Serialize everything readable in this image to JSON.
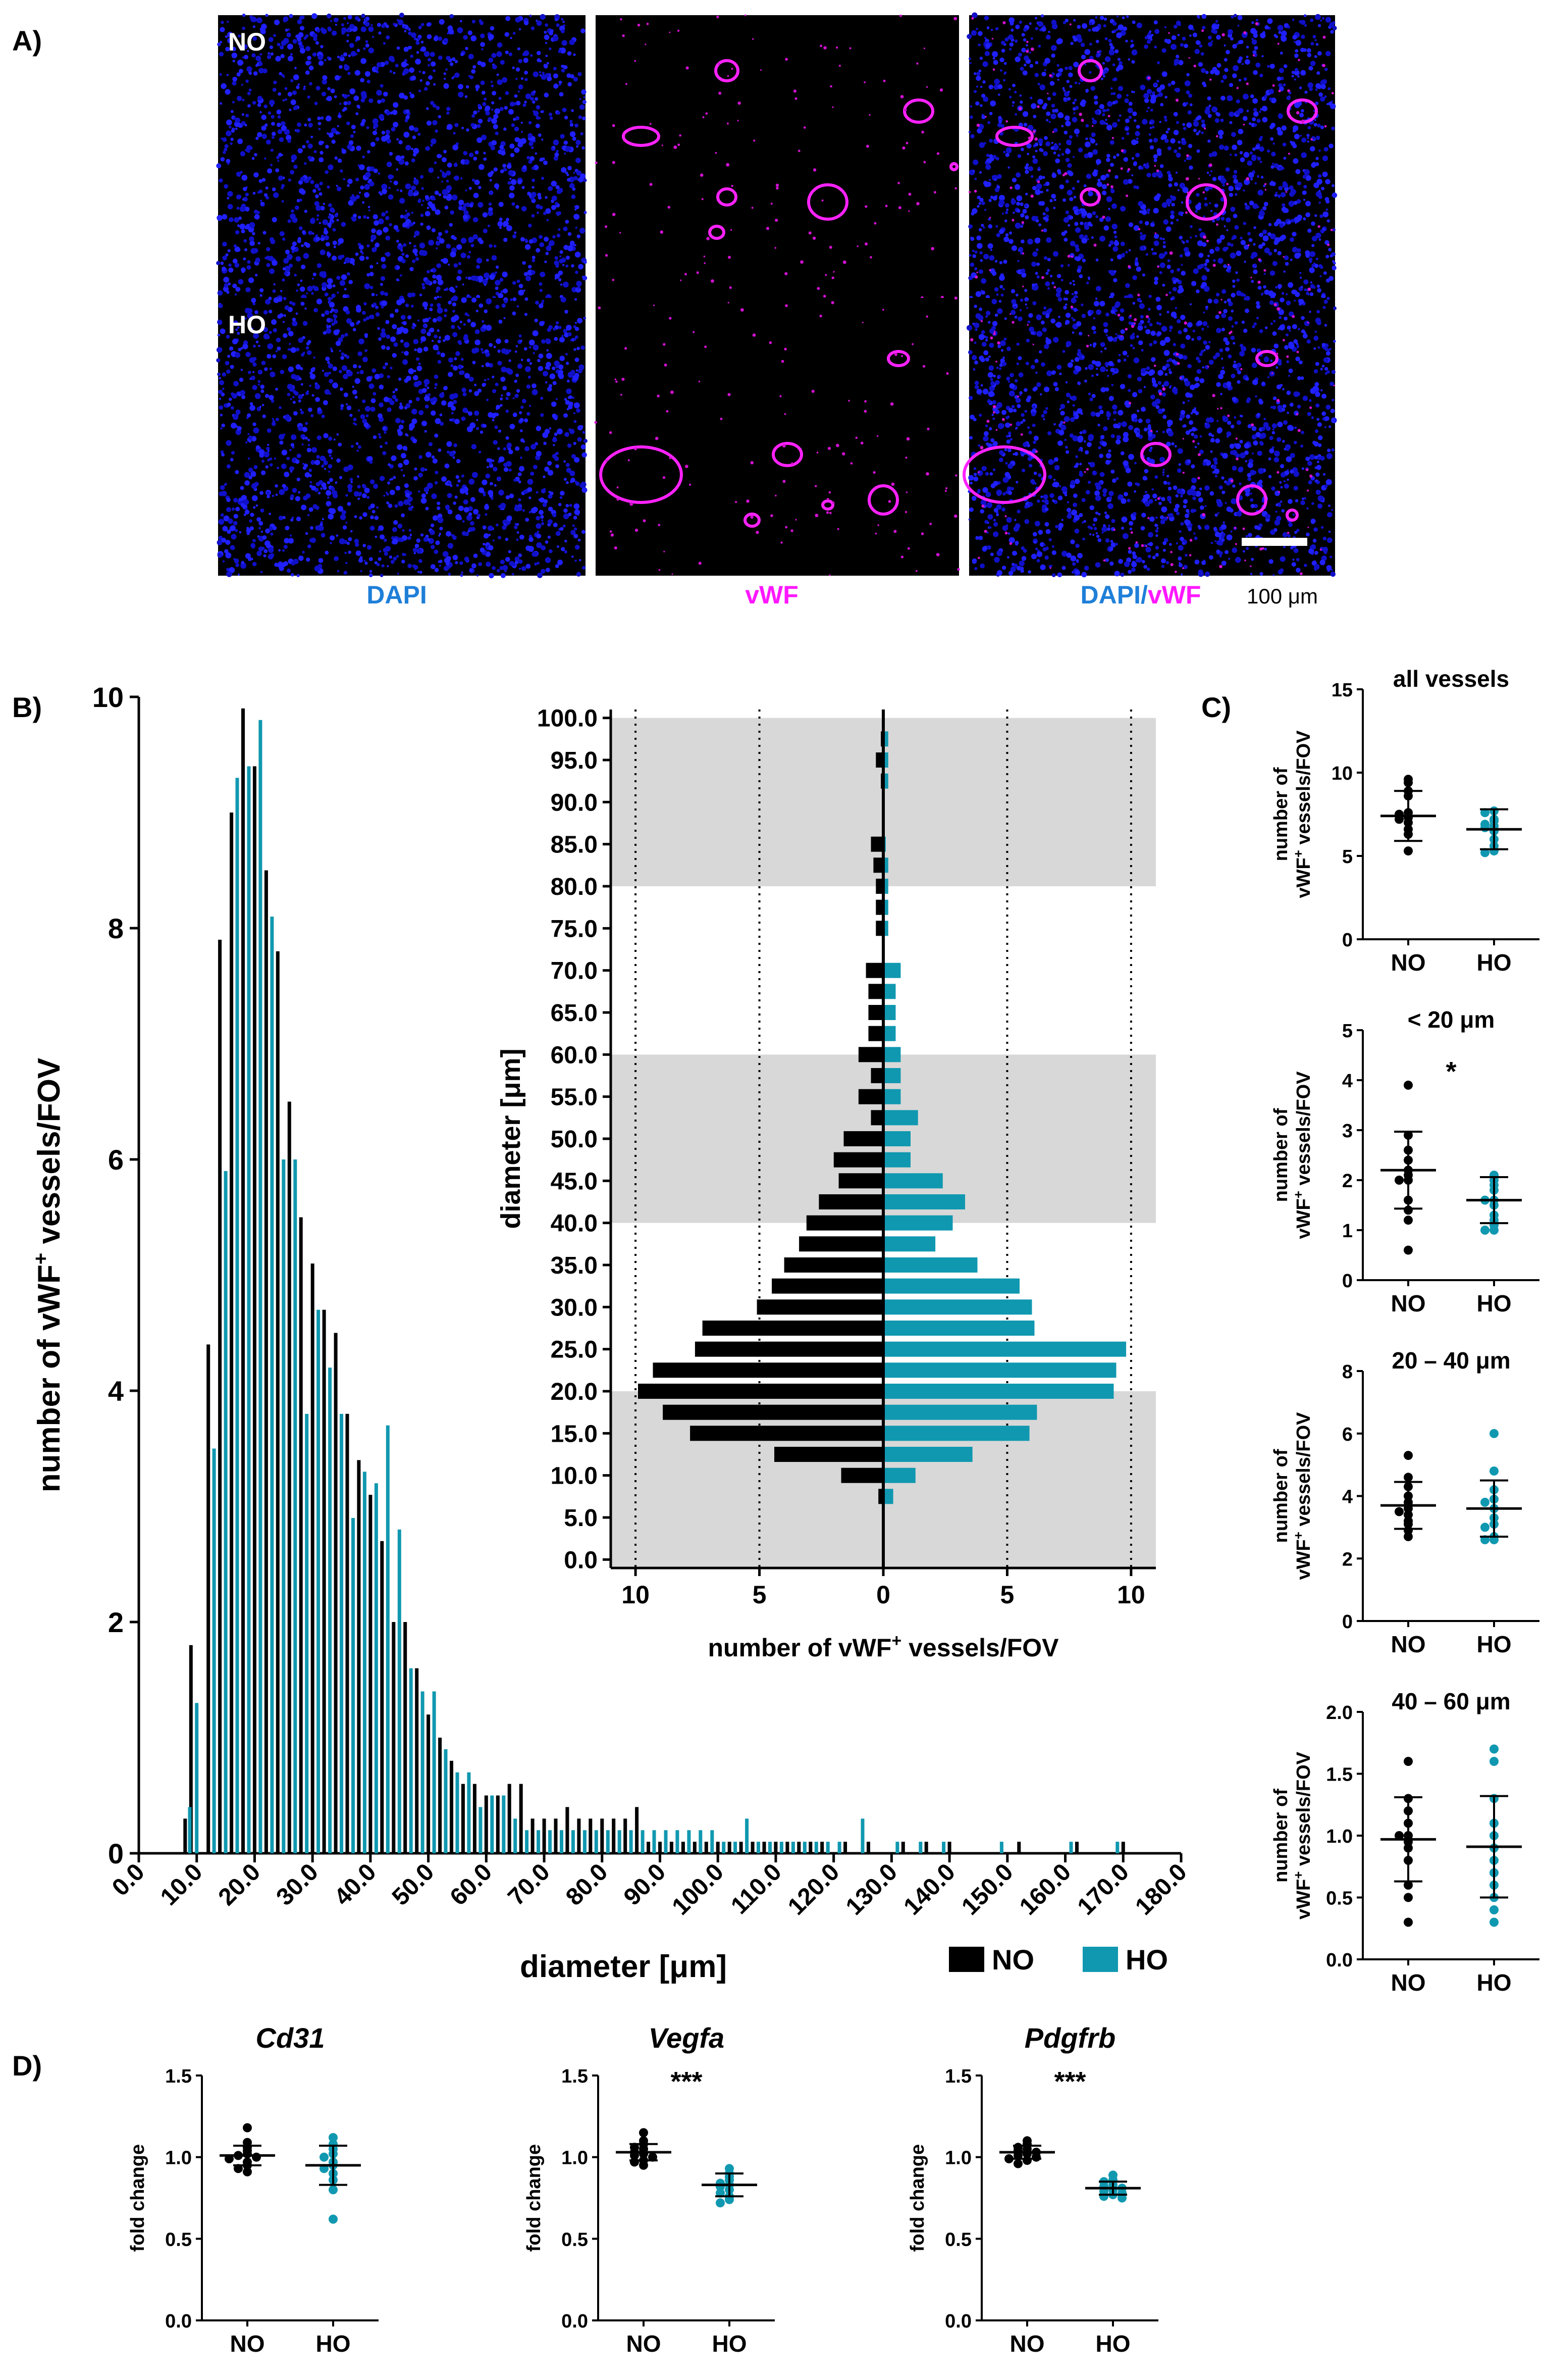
{
  "colors": {
    "no": "#000000",
    "ho": "#1098b0",
    "dapi": "#1f7fd8",
    "vwf": "#ff18ff",
    "gray": "#d8d8d8"
  },
  "panel_labels": {
    "a": "A)",
    "b": "B)",
    "c": "C)",
    "d": "D)"
  },
  "microscopy": {
    "row_labels": [
      "NO",
      "HO"
    ],
    "channel_dapi": "DAPI",
    "channel_vwf": "vWF",
    "merge_sep": "/",
    "scale_bar": "100 μm"
  },
  "chart_data": [
    {
      "id": "histogram",
      "type": "bar",
      "xlabel": "diameter [μm]",
      "ylabel_main": "number of vWF",
      "ylabel_sup": "+",
      "ylabel_tail": " vessels/FOV",
      "ylim": [
        0,
        10
      ],
      "yticks": [
        "0",
        "2",
        "4",
        "6",
        "8",
        "10"
      ],
      "xticks": [
        "0.0",
        "10.0",
        "20.0",
        "30.0",
        "40.0",
        "50.0",
        "60.0",
        "70.0",
        "80.0",
        "90.0",
        "100.0",
        "110.0",
        "120.0",
        "130.0",
        "140.0",
        "150.0",
        "160.0",
        "170.0",
        "180.0"
      ],
      "legend": [
        "NO",
        "HO"
      ],
      "series": [
        {
          "name": "NO",
          "x": [
            8,
            9,
            12,
            14,
            16,
            18,
            20,
            22,
            24,
            26,
            28,
            30,
            32,
            34,
            36,
            38,
            40,
            42,
            44,
            46,
            48,
            50,
            52,
            54,
            56,
            58,
            60,
            62,
            64,
            66,
            68,
            70,
            72,
            74,
            76,
            78,
            80,
            82,
            84,
            86,
            88,
            90,
            92,
            94,
            96,
            98,
            100,
            102,
            104,
            106,
            108,
            110,
            112,
            114,
            116,
            118,
            122,
            126,
            132,
            136,
            140,
            152,
            162,
            170
          ],
          "y": [
            0.3,
            1.8,
            4.4,
            7.9,
            9.0,
            9.9,
            9.4,
            8.5,
            7.8,
            6.5,
            5.5,
            5.1,
            4.7,
            4.5,
            3.8,
            3.4,
            3.1,
            2.7,
            2.0,
            2.0,
            1.6,
            1.2,
            1.0,
            0.8,
            0.6,
            0.6,
            0.5,
            0.5,
            0.6,
            0.6,
            0.3,
            0.3,
            0.3,
            0.4,
            0.3,
            0.3,
            0.3,
            0.3,
            0.3,
            0.4,
            0.1,
            0.1,
            0.1,
            0.1,
            0.1,
            0.1,
            0.1,
            0.1,
            0.1,
            0.1,
            0.1,
            0.1,
            0.1,
            0.1,
            0.1,
            0.1,
            0.1,
            0.1,
            0.1,
            0.1,
            0.1,
            0.1,
            0.1,
            0.1
          ]
        },
        {
          "name": "HO",
          "x": [
            8.8,
            10,
            13,
            15,
            17,
            19,
            21,
            23,
            25,
            27,
            29,
            31,
            33,
            35,
            37,
            39,
            41,
            43,
            45,
            47,
            49,
            51,
            53,
            55,
            57,
            59,
            61,
            63,
            65,
            67,
            69,
            71,
            73,
            75,
            77,
            79,
            81,
            83,
            85,
            87,
            89,
            91,
            93,
            95,
            97,
            99,
            101,
            103,
            105,
            107,
            109,
            111,
            113,
            115,
            117,
            119,
            121,
            125,
            131,
            135,
            139,
            149,
            161,
            169
          ],
          "y": [
            0.4,
            1.3,
            3.5,
            5.9,
            9.3,
            9.4,
            9.8,
            8.1,
            6.0,
            6.0,
            3.8,
            4.7,
            4.2,
            3.8,
            2.9,
            3.3,
            3.2,
            3.7,
            2.8,
            1.6,
            1.4,
            1.4,
            0.9,
            0.7,
            0.7,
            0.4,
            0.5,
            0.5,
            0.3,
            0.2,
            0.2,
            0.2,
            0.2,
            0.2,
            0.2,
            0.2,
            0.2,
            0.2,
            0.2,
            0.2,
            0.2,
            0.2,
            0.2,
            0.2,
            0.2,
            0.2,
            0.1,
            0.1,
            0.3,
            0.1,
            0.1,
            0.1,
            0.1,
            0.1,
            0.1,
            0.1,
            0.1,
            0.3,
            0.1,
            0.1,
            0.1,
            0.1,
            0.1,
            0.1
          ]
        }
      ]
    },
    {
      "id": "butterfly",
      "type": "bar",
      "orientation": "horizontal",
      "ylabel": "diameter [μm]",
      "xlabel_main": "number of vWF",
      "xlabel_sup": "+",
      "xlabel_tail": " vessels/FOV",
      "categories": [
        0,
        2.5,
        5,
        7.5,
        10,
        12.5,
        15,
        17.5,
        20,
        22.5,
        25,
        27.5,
        30,
        32.5,
        35,
        37.5,
        40,
        42.5,
        45,
        47.5,
        50,
        52.5,
        55,
        57.5,
        60,
        62.5,
        65,
        67.5,
        70,
        72.5,
        75,
        77.5,
        80,
        82.5,
        85,
        87.5,
        90,
        92.5,
        95,
        97.5,
        100
      ],
      "ylim": [
        -1,
        101
      ],
      "xlim": [
        -11,
        11
      ],
      "yticks": [
        "0.0",
        "5.0",
        "10.0",
        "15.0",
        "20.0",
        "25.0",
        "30.0",
        "35.0",
        "40.0",
        "45.0",
        "50.0",
        "55.0",
        "60.0",
        "65.0",
        "70.0",
        "75.0",
        "80.0",
        "85.0",
        "90.0",
        "95.0",
        "100.0"
      ],
      "xticks": [
        "10",
        "5",
        "0",
        "5",
        "10"
      ],
      "shaded_ranges": [
        [
          -1,
          20
        ],
        [
          40,
          60
        ],
        [
          80,
          100
        ]
      ],
      "dotted_lines": [
        -10,
        -5,
        5,
        10
      ],
      "series": [
        {
          "name": "NO",
          "values": [
            0,
            0,
            0,
            0.2,
            1.7,
            4.4,
            7.8,
            8.9,
            9.9,
            9.3,
            7.6,
            7.3,
            5.1,
            4.5,
            4.0,
            3.4,
            3.1,
            2.6,
            1.8,
            2.0,
            1.6,
            0.5,
            1.0,
            0.5,
            1.0,
            0.6,
            0.6,
            0.6,
            0.7,
            0,
            0.3,
            0.3,
            0.3,
            0.4,
            0.5,
            0,
            0,
            0.1,
            0.3,
            0.1,
            0
          ]
        },
        {
          "name": "HO",
          "values": [
            0,
            0,
            0,
            0.4,
            1.3,
            3.6,
            5.9,
            6.2,
            9.3,
            9.4,
            9.8,
            6.1,
            6.0,
            5.5,
            3.8,
            2.1,
            2.8,
            3.3,
            2.4,
            1.1,
            1.1,
            1.4,
            0.7,
            0.7,
            0.7,
            0.5,
            0.5,
            0.5,
            0.7,
            0,
            0.2,
            0.2,
            0.2,
            0.2,
            0.1,
            0,
            0,
            0.2,
            0.2,
            0.2,
            0
          ]
        }
      ]
    },
    {
      "id": "c_all",
      "type": "scatter",
      "title": "all vessels",
      "ylabel_l1": "number of",
      "ylabel_l2_main": "vWF",
      "ylabel_l2_sup": "+",
      "ylabel_l2_tail": " vessels/FOV",
      "categories": [
        "NO",
        "HO"
      ],
      "ylim": [
        0,
        15
      ],
      "yticks": [
        "0",
        "5",
        "10",
        "15"
      ],
      "sig": "",
      "groups": [
        {
          "name": "NO",
          "mean": 7.4,
          "sd": 1.5,
          "points": [
            9.6,
            9.4,
            8.9,
            8.6,
            7.6,
            7.5,
            7.3,
            7.2,
            7.0,
            6.6,
            6.3,
            5.3
          ]
        },
        {
          "name": "HO",
          "mean": 6.6,
          "sd": 1.2,
          "points": [
            7.7,
            7.6,
            7.2,
            7.1,
            6.9,
            6.8,
            6.7,
            6.5,
            6.0,
            5.6,
            5.3,
            5.2
          ]
        }
      ]
    },
    {
      "id": "c_lt20",
      "type": "scatter",
      "title": "< 20 μm",
      "ylabel_l1": "number of",
      "ylabel_l2_main": "vWF",
      "ylabel_l2_sup": "+",
      "ylabel_l2_tail": " vessels/FOV",
      "categories": [
        "NO",
        "HO"
      ],
      "ylim": [
        0,
        5
      ],
      "yticks": [
        "0",
        "1",
        "2",
        "3",
        "4",
        "5"
      ],
      "sig": "*",
      "groups": [
        {
          "name": "NO",
          "mean": 2.2,
          "sd": 0.77,
          "points": [
            3.9,
            2.9,
            2.6,
            2.4,
            2.2,
            2.1,
            2.0,
            2.0,
            1.6,
            1.4,
            1.2,
            0.6
          ]
        },
        {
          "name": "HO",
          "mean": 1.6,
          "sd": 0.46,
          "points": [
            2.1,
            2.0,
            1.9,
            1.8,
            1.6,
            1.6,
            1.5,
            1.3,
            1.2,
            1.1,
            1.0,
            1.0
          ]
        }
      ]
    },
    {
      "id": "c_20_40",
      "type": "scatter",
      "title": "20 – 40 μm",
      "ylabel_l1": "number of",
      "ylabel_l2_main": "vWF",
      "ylabel_l2_sup": "+",
      "ylabel_l2_tail": " vessels/FOV",
      "categories": [
        "NO",
        "HO"
      ],
      "ylim": [
        0,
        8
      ],
      "yticks": [
        "0",
        "2",
        "4",
        "6",
        "8"
      ],
      "sig": "",
      "groups": [
        {
          "name": "NO",
          "mean": 3.7,
          "sd": 0.75,
          "points": [
            5.3,
            4.6,
            4.3,
            4.0,
            3.8,
            3.6,
            3.5,
            3.4,
            3.2,
            3.1,
            2.9,
            2.7
          ]
        },
        {
          "name": "HO",
          "mean": 3.6,
          "sd": 0.9,
          "points": [
            6.0,
            4.8,
            4.2,
            3.9,
            3.8,
            3.6,
            3.3,
            3.1,
            3.0,
            2.7,
            2.6,
            2.6
          ]
        }
      ]
    },
    {
      "id": "c_40_60",
      "type": "scatter",
      "title": "40 – 60 μm",
      "ylabel_l1": "number of",
      "ylabel_l2_main": "vWF",
      "ylabel_l2_sup": "+",
      "ylabel_l2_tail": " vessels/FOV",
      "categories": [
        "NO",
        "HO"
      ],
      "ylim": [
        0,
        2
      ],
      "yticks": [
        "0.0",
        "0.5",
        "1.0",
        "1.5",
        "2.0"
      ],
      "sig": "",
      "groups": [
        {
          "name": "NO",
          "mean": 0.97,
          "sd": 0.34,
          "points": [
            1.6,
            1.3,
            1.2,
            1.1,
            1.0,
            1.0,
            0.95,
            0.9,
            0.8,
            0.6,
            0.5,
            0.3
          ]
        },
        {
          "name": "HO",
          "mean": 0.91,
          "sd": 0.41,
          "points": [
            1.7,
            1.6,
            1.3,
            1.1,
            1.0,
            0.9,
            0.8,
            0.7,
            0.6,
            0.5,
            0.4,
            0.3
          ]
        }
      ]
    },
    {
      "id": "d_cd31",
      "type": "scatter",
      "title": "Cd31",
      "italic": true,
      "ylabel_l1": "fold change",
      "categories": [
        "NO",
        "HO"
      ],
      "ylim": [
        0,
        1.5
      ],
      "yticks": [
        "0.0",
        "0.5",
        "1.0",
        "1.5"
      ],
      "sig": "",
      "groups": [
        {
          "name": "NO",
          "mean": 1.01,
          "sd": 0.06,
          "points": [
            1.18,
            1.09,
            1.06,
            1.04,
            1.02,
            1.01,
            1.0,
            0.99,
            0.97,
            0.95,
            0.93,
            0.91
          ]
        },
        {
          "name": "HO",
          "mean": 0.95,
          "sd": 0.12,
          "points": [
            1.12,
            1.08,
            1.05,
            1.02,
            1.0,
            0.97,
            0.95,
            0.93,
            0.9,
            0.86,
            0.8,
            0.62
          ]
        }
      ]
    },
    {
      "id": "d_vegfa",
      "type": "scatter",
      "title": "Vegfa",
      "italic": true,
      "ylabel_l1": "fold change",
      "categories": [
        "NO",
        "HO"
      ],
      "ylim": [
        0,
        1.5
      ],
      "yticks": [
        "0.0",
        "0.5",
        "1.0",
        "1.5"
      ],
      "sig": "***",
      "groups": [
        {
          "name": "NO",
          "mean": 1.03,
          "sd": 0.05,
          "points": [
            1.15,
            1.1,
            1.08,
            1.06,
            1.05,
            1.03,
            1.02,
            1.01,
            1.0,
            0.98,
            0.97,
            0.95
          ]
        },
        {
          "name": "HO",
          "mean": 0.83,
          "sd": 0.07,
          "points": [
            0.93,
            0.9,
            0.88,
            0.86,
            0.84,
            0.83,
            0.82,
            0.8,
            0.78,
            0.76,
            0.74,
            0.72
          ]
        }
      ]
    },
    {
      "id": "d_pdgfrb",
      "type": "scatter",
      "title": "Pdgfrb",
      "italic": true,
      "ylabel_l1": "fold change",
      "categories": [
        "NO",
        "HO"
      ],
      "ylim": [
        0,
        1.5
      ],
      "yticks": [
        "0.0",
        "0.5",
        "1.0",
        "1.5"
      ],
      "sig": "***",
      "groups": [
        {
          "name": "NO",
          "mean": 1.03,
          "sd": 0.04,
          "points": [
            1.1,
            1.08,
            1.06,
            1.05,
            1.04,
            1.03,
            1.02,
            1.01,
            1.0,
            0.99,
            0.98,
            0.96
          ]
        },
        {
          "name": "HO",
          "mean": 0.81,
          "sd": 0.04,
          "points": [
            0.89,
            0.86,
            0.85,
            0.83,
            0.82,
            0.81,
            0.8,
            0.79,
            0.78,
            0.77,
            0.76,
            0.75
          ]
        }
      ]
    }
  ]
}
